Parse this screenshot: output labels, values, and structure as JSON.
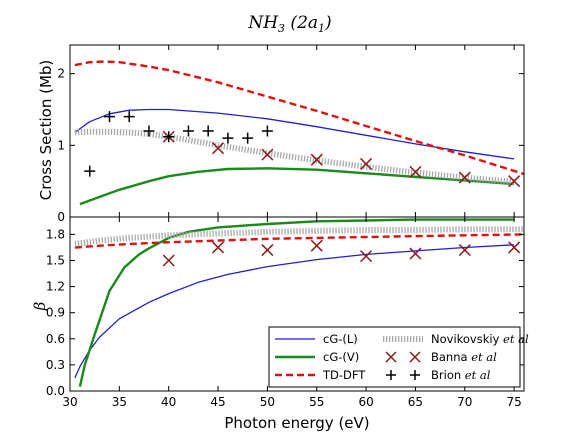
{
  "title": {
    "main": "NH",
    "sub": "3",
    "rest": " (2a",
    "sub2": "1",
    "close": ")"
  },
  "chart_data": [
    {
      "type": "line",
      "panel": "top",
      "ylabel": "Cross Section (Mb)",
      "xlim": [
        30,
        76
      ],
      "ylim": [
        0,
        2.4
      ],
      "yticks": [
        0,
        1,
        2
      ],
      "ytick_labels": [
        "0",
        "1",
        "2"
      ],
      "grid": false,
      "series": [
        {
          "name": "cG-(L)",
          "color": "#1f1fd8",
          "style": "solid",
          "width": 1.3,
          "points": [
            [
              30.5,
              1.18
            ],
            [
              32,
              1.33
            ],
            [
              34,
              1.44
            ],
            [
              36,
              1.49
            ],
            [
              38,
              1.5
            ],
            [
              40,
              1.5
            ],
            [
              45,
              1.45
            ],
            [
              50,
              1.37
            ],
            [
              55,
              1.26
            ],
            [
              60,
              1.14
            ],
            [
              65,
              1.02
            ],
            [
              70,
              0.91
            ],
            [
              75,
              0.81
            ]
          ]
        },
        {
          "name": "cG-(V)",
          "color": "#1a8a1a",
          "style": "solid",
          "width": 2.4,
          "points": [
            [
              31,
              0.18
            ],
            [
              33,
              0.28
            ],
            [
              35,
              0.38
            ],
            [
              38,
              0.5
            ],
            [
              40,
              0.57
            ],
            [
              43,
              0.63
            ],
            [
              46,
              0.67
            ],
            [
              50,
              0.68
            ],
            [
              55,
              0.66
            ],
            [
              60,
              0.61
            ],
            [
              65,
              0.56
            ],
            [
              70,
              0.51
            ],
            [
              75,
              0.46
            ]
          ]
        },
        {
          "name": "TD-DFT",
          "color": "#e01010",
          "style": "dashed",
          "width": 2.4,
          "points": [
            [
              30.5,
              2.12
            ],
            [
              32,
              2.16
            ],
            [
              33.5,
              2.17
            ],
            [
              35,
              2.16
            ],
            [
              38,
              2.1
            ],
            [
              40,
              2.05
            ],
            [
              45,
              1.88
            ],
            [
              50,
              1.68
            ],
            [
              55,
              1.48
            ],
            [
              60,
              1.27
            ],
            [
              65,
              1.06
            ],
            [
              70,
              0.86
            ],
            [
              76,
              0.6
            ]
          ]
        },
        {
          "name": "Novikovskiy et al",
          "color": "#a8a8a8",
          "style": "hatched",
          "width": 6,
          "points": [
            [
              30.5,
              1.18
            ],
            [
              32,
              1.19
            ],
            [
              34,
              1.19
            ],
            [
              36,
              1.18
            ],
            [
              38,
              1.16
            ],
            [
              40,
              1.12
            ],
            [
              45,
              1.0
            ],
            [
              50,
              0.89
            ],
            [
              55,
              0.79
            ],
            [
              60,
              0.7
            ],
            [
              65,
              0.62
            ],
            [
              70,
              0.55
            ],
            [
              75,
              0.49
            ]
          ]
        },
        {
          "name": "Banna et al",
          "color": "#8b1a1a",
          "marker": "x",
          "points": [
            [
              40,
              1.12
            ],
            [
              45,
              0.96
            ],
            [
              50,
              0.87
            ],
            [
              55,
              0.8
            ],
            [
              60,
              0.74
            ],
            [
              65,
              0.63
            ],
            [
              70,
              0.55
            ],
            [
              75,
              0.5
            ]
          ]
        },
        {
          "name": "Brion et al",
          "color": "#000000",
          "marker": "+",
          "points": [
            [
              32,
              0.64
            ],
            [
              34,
              1.4
            ],
            [
              36,
              1.4
            ],
            [
              38,
              1.2
            ],
            [
              40,
              1.12
            ],
            [
              42,
              1.2
            ],
            [
              44,
              1.2
            ],
            [
              46,
              1.1
            ],
            [
              48,
              1.1
            ],
            [
              50,
              1.2
            ]
          ]
        }
      ]
    },
    {
      "type": "line",
      "panel": "bottom",
      "xlabel": "Photon energy (eV)",
      "ylabel": "β",
      "xlim": [
        30,
        76
      ],
      "ylim": [
        0,
        2.0
      ],
      "xticks": [
        30,
        35,
        40,
        45,
        50,
        55,
        60,
        65,
        70,
        75
      ],
      "xtick_labels": [
        "30",
        "35",
        "40",
        "45",
        "50",
        "55",
        "60",
        "65",
        "70",
        "75"
      ],
      "yticks": [
        0,
        0.3,
        0.6,
        0.9,
        1.2,
        1.5,
        1.8
      ],
      "ytick_labels": [
        "0.0",
        "0.3",
        "0.6",
        "0.9",
        "1.2",
        "1.5",
        "1.8"
      ],
      "grid": false,
      "legend": "lower-right",
      "series": [
        {
          "name": "cG-(L)",
          "color": "#1f1fd8",
          "style": "solid",
          "width": 1.3,
          "points": [
            [
              30.5,
              0.15
            ],
            [
              31,
              0.28
            ],
            [
              32,
              0.47
            ],
            [
              33,
              0.62
            ],
            [
              35,
              0.83
            ],
            [
              38,
              1.02
            ],
            [
              40,
              1.12
            ],
            [
              43,
              1.25
            ],
            [
              46,
              1.34
            ],
            [
              50,
              1.43
            ],
            [
              55,
              1.51
            ],
            [
              60,
              1.57
            ],
            [
              65,
              1.61
            ],
            [
              70,
              1.65
            ],
            [
              75,
              1.68
            ]
          ]
        },
        {
          "name": "cG-(V)",
          "color": "#1a8a1a",
          "style": "solid",
          "width": 2.4,
          "points": [
            [
              31,
              0.05
            ],
            [
              31.5,
              0.3
            ],
            [
              32.5,
              0.65
            ],
            [
              34,
              1.15
            ],
            [
              35.5,
              1.42
            ],
            [
              37,
              1.57
            ],
            [
              38,
              1.64
            ],
            [
              40,
              1.76
            ],
            [
              42,
              1.83
            ],
            [
              45,
              1.88
            ],
            [
              50,
              1.92
            ],
            [
              55,
              1.95
            ],
            [
              60,
              1.96
            ],
            [
              65,
              1.97
            ],
            [
              70,
              1.97
            ],
            [
              75,
              1.97
            ]
          ]
        },
        {
          "name": "TD-DFT",
          "color": "#e01010",
          "style": "dashed",
          "width": 2.4,
          "points": [
            [
              30.5,
              1.65
            ],
            [
              33,
              1.67
            ],
            [
              36,
              1.69
            ],
            [
              40,
              1.71
            ],
            [
              45,
              1.73
            ],
            [
              50,
              1.75
            ],
            [
              55,
              1.76
            ],
            [
              60,
              1.77
            ],
            [
              65,
              1.78
            ],
            [
              70,
              1.79
            ],
            [
              76,
              1.8
            ]
          ]
        },
        {
          "name": "Novikovskiy et al",
          "color": "#a8a8a8",
          "style": "hatched",
          "width": 6,
          "points": [
            [
              30.5,
              1.69
            ],
            [
              33,
              1.73
            ],
            [
              36,
              1.76
            ],
            [
              40,
              1.79
            ],
            [
              45,
              1.81
            ],
            [
              50,
              1.83
            ],
            [
              55,
              1.84
            ],
            [
              60,
              1.85
            ],
            [
              65,
              1.85
            ],
            [
              70,
              1.86
            ],
            [
              76,
              1.86
            ]
          ]
        },
        {
          "name": "Banna et al",
          "color": "#8b1a1a",
          "marker": "x",
          "points": [
            [
              40,
              1.5
            ],
            [
              45,
              1.65
            ],
            [
              50,
              1.62
            ],
            [
              55,
              1.67
            ],
            [
              60,
              1.55
            ],
            [
              65,
              1.58
            ],
            [
              70,
              1.62
            ],
            [
              75,
              1.65
            ]
          ]
        }
      ]
    }
  ],
  "legend": {
    "items": [
      {
        "label": "cG-(L)",
        "color": "#1f1fd8",
        "style": "solid"
      },
      {
        "label": "Novikovskiy",
        "suffix": " et al",
        "color": "#a8a8a8",
        "style": "hatched"
      },
      {
        "label": "cG-(V)",
        "color": "#1a8a1a",
        "style": "solid"
      },
      {
        "label": "Banna",
        "suffix": " et al",
        "color": "#8b1a1a",
        "style": "x"
      },
      {
        "label": "TD-DFT",
        "color": "#e01010",
        "style": "dashed"
      },
      {
        "label": "Brion",
        "suffix": " et al",
        "color": "#000000",
        "style": "+"
      }
    ]
  }
}
